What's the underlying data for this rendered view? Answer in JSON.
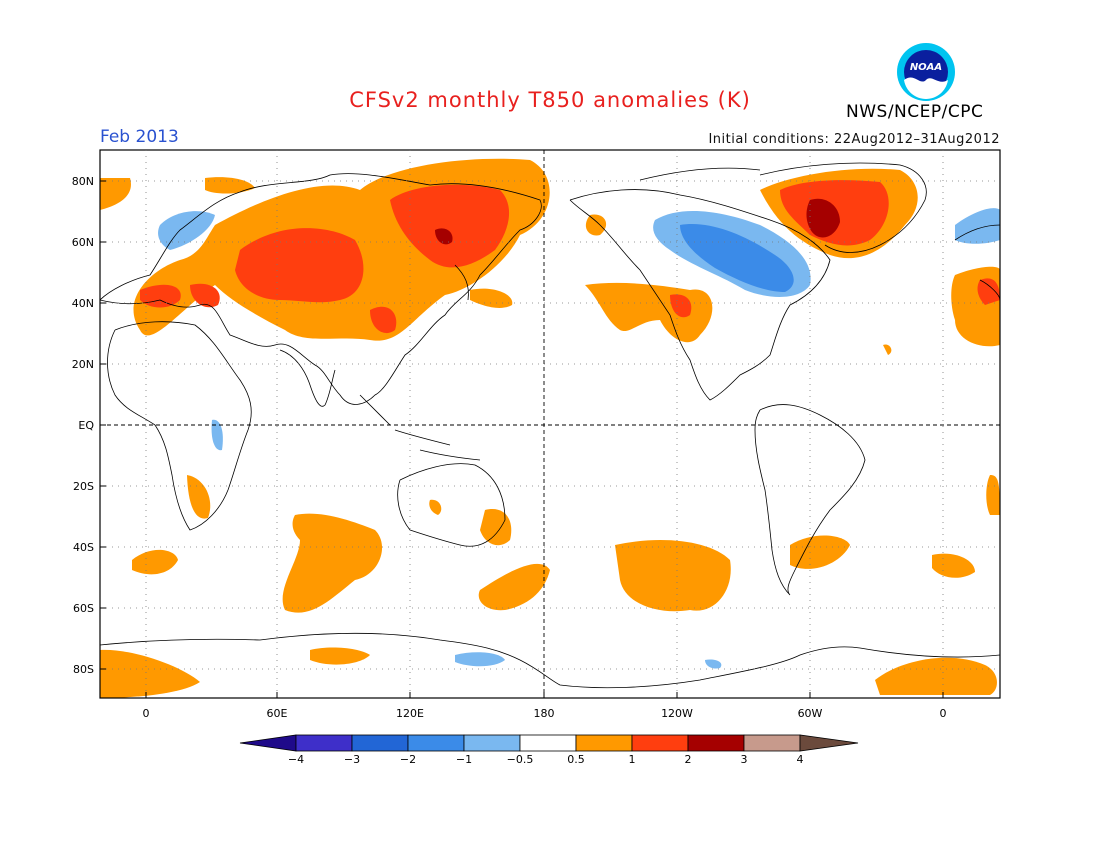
{
  "title": "CFSv2 monthly T850 anomalies (K)",
  "month_label": "Feb 2013",
  "initial_conditions": "Initial conditions: 22Aug2012–31Aug2012",
  "org_label": "NWS/NCEP/CPC",
  "logo_text": "NOAA",
  "lat_ticks": [
    "80N",
    "60N",
    "40N",
    "20N",
    "EQ",
    "20S",
    "40S",
    "60S",
    "80S"
  ],
  "lon_ticks": [
    "0",
    "60E",
    "120E",
    "180",
    "120W",
    "60W",
    "0"
  ],
  "colorbar": {
    "labels": [
      "−4",
      "−3",
      "−2",
      "−1",
      "−0.5",
      "0.5",
      "1",
      "2",
      "3",
      "4"
    ],
    "colors": [
      "#1f0a8a",
      "#3e2fc9",
      "#2266d6",
      "#3b8be8",
      "#7ab8f0",
      "#ffffff",
      "#ff9900",
      "#ff3e0f",
      "#a50000",
      "#c79a8c",
      "#6b4a3c"
    ]
  }
}
